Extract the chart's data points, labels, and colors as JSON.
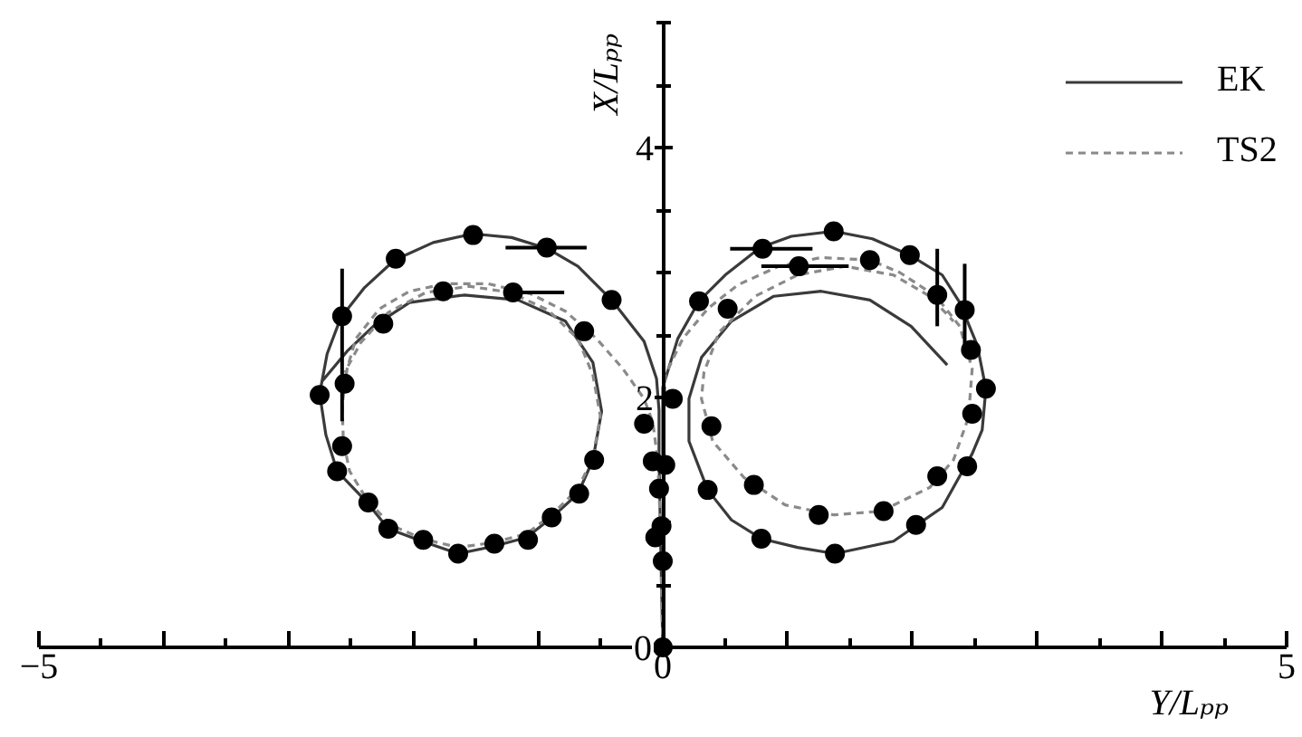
{
  "chart_data": {
    "type": "line",
    "xlabel": "Y/Lₚₚ",
    "ylabel": "X/Lₚₚ",
    "xlim": [
      -5,
      5
    ],
    "ylim": [
      0,
      5
    ],
    "xticks": [
      {
        "value": -5,
        "label": "−5"
      },
      {
        "value": -4.5,
        "label": null
      },
      {
        "value": -4,
        "label": null
      },
      {
        "value": -3.5,
        "label": null
      },
      {
        "value": -3,
        "label": null
      },
      {
        "value": -2.5,
        "label": null
      },
      {
        "value": -2,
        "label": null
      },
      {
        "value": -1.5,
        "label": null
      },
      {
        "value": -1,
        "label": null
      },
      {
        "value": -0.5,
        "label": null
      },
      0,
      {
        "value": 0.5,
        "label": null
      },
      {
        "value": 1,
        "label": null
      },
      {
        "value": 1.5,
        "label": null
      },
      {
        "value": 2,
        "label": null
      },
      {
        "value": 2.5,
        "label": null
      },
      {
        "value": 3,
        "label": null
      },
      {
        "value": 3.5,
        "label": null
      },
      {
        "value": 4,
        "label": null
      },
      {
        "value": 4.5,
        "label": null
      },
      5
    ],
    "yticks": [
      0,
      {
        "value": 0.5,
        "label": null
      },
      {
        "value": 1,
        "label": null
      },
      {
        "value": 1.5,
        "label": null
      },
      2,
      {
        "value": 2.5,
        "label": null
      },
      {
        "value": 3,
        "label": null
      },
      {
        "value": 3.5,
        "label": null
      },
      4,
      {
        "value": 4.5,
        "label": null
      },
      {
        "value": 5,
        "label": null
      }
    ],
    "grid": false,
    "legend": "top right",
    "series": [
      {
        "name": "EK",
        "color": "#3a3a3a",
        "line_style": "solid",
        "marker": "none",
        "x": [
          0,
          -0.01,
          -0.02,
          -0.03,
          -0.03,
          -0.05,
          -0.15,
          -0.41,
          -0.68,
          -0.92,
          -1.21,
          -1.52,
          -1.84,
          -2.15,
          -2.39,
          -2.58,
          -2.69,
          -2.75,
          -2.7,
          -2.61,
          -2.37,
          -2.2,
          -1.93,
          -1.64,
          -1.35,
          -1.09,
          -0.9,
          -0.68,
          -0.56,
          -0.49,
          -0.56,
          -0.78,
          -1.16,
          -1.59,
          -2.03,
          -2.32,
          -2.53,
          -2.73,
          null,
          0,
          0.01,
          0.01,
          0,
          0,
          0,
          0.12,
          0.29,
          0.5,
          0.78,
          1.03,
          1.37,
          1.68,
          1.98,
          2.24,
          2.38,
          2.52,
          2.59,
          2.56,
          2.48,
          2.24,
          1.85,
          1.38,
          1.08,
          0.79,
          0.55,
          0.36,
          0.21,
          0.21,
          0.31,
          0.55,
          0.89,
          1.27,
          1.66,
          1.99,
          2.28
        ],
        "values": [
          0,
          0.5,
          1.0,
          1.5,
          1.9,
          2.15,
          2.45,
          2.78,
          3.05,
          3.19,
          3.28,
          3.31,
          3.24,
          3.1,
          2.88,
          2.64,
          2.35,
          2.03,
          1.7,
          1.41,
          1.16,
          0.95,
          0.85,
          0.75,
          0.81,
          0.88,
          1.03,
          1.23,
          1.5,
          1.89,
          2.28,
          2.61,
          2.78,
          2.82,
          2.76,
          2.57,
          2.37,
          2.13,
          null,
          0,
          0.5,
          1.0,
          1.5,
          1.9,
          2.08,
          2.47,
          2.77,
          2.98,
          3.2,
          3.29,
          3.33,
          3.27,
          3.14,
          2.98,
          2.76,
          2.42,
          2.07,
          1.74,
          1.55,
          1.12,
          0.85,
          0.75,
          0.8,
          0.87,
          1.02,
          1.26,
          1.65,
          1.99,
          2.32,
          2.61,
          2.81,
          2.85,
          2.78,
          2.57,
          2.26
        ]
      },
      {
        "name": "TS2",
        "color": "#8a8a8a",
        "line_style": "dashed",
        "marker": "none",
        "x": [
          0,
          -0.01,
          -0.02,
          -0.04,
          -0.08,
          -0.15,
          -0.32,
          -0.53,
          -0.78,
          -1.06,
          -1.4,
          -1.74,
          -2.03,
          -2.27,
          -2.46,
          -2.53,
          -2.57,
          -2.56,
          -2.51,
          -2.37,
          -2.18,
          -1.93,
          -1.64,
          -1.35,
          -1.09,
          -0.88,
          -0.68,
          -0.56,
          -0.5,
          -0.56,
          -0.68,
          -0.92,
          -1.22,
          -1.55,
          -1.9,
          -2.2,
          -2.42,
          -2.55,
          null,
          0,
          0.01,
          0.01,
          0.01,
          0.01,
          0.02,
          0.16,
          0.36,
          0.6,
          0.93,
          1.27,
          1.66,
          1.9,
          2.19,
          2.38,
          2.48,
          2.45,
          2.33,
          2.14,
          1.75,
          1.37,
          0.98,
          0.65,
          0.4,
          0.31,
          0.33,
          0.45,
          0.74,
          1.08,
          1.46,
          1.85,
          2.14,
          2.33
        ],
        "values": [
          0,
          0.5,
          1.0,
          1.5,
          1.8,
          1.99,
          2.23,
          2.47,
          2.69,
          2.83,
          2.91,
          2.91,
          2.85,
          2.71,
          2.47,
          2.23,
          1.94,
          1.65,
          1.41,
          1.18,
          0.98,
          0.87,
          0.8,
          0.84,
          0.91,
          1.07,
          1.27,
          1.52,
          1.85,
          2.18,
          2.47,
          2.7,
          2.84,
          2.89,
          2.84,
          2.68,
          2.44,
          2.2,
          null,
          0,
          0.5,
          1.0,
          1.5,
          1.9,
          2.18,
          2.47,
          2.71,
          2.9,
          3.05,
          3.12,
          3.1,
          3.0,
          2.81,
          2.57,
          2.23,
          1.84,
          1.5,
          1.28,
          1.09,
          1.06,
          1.14,
          1.36,
          1.65,
          1.99,
          2.2,
          2.52,
          2.81,
          2.98,
          3.05,
          2.98,
          2.81,
          2.61
        ]
      },
      {
        "type": "scatter",
        "color": "#000000",
        "marker": "circle",
        "x": [
          -1.52,
          -2.14,
          -0.93,
          -0.41,
          -2.57,
          -1.76,
          -1.2,
          -0.63,
          -2.24,
          -2.75,
          -2.55,
          -2.57,
          -2.61,
          -2.36,
          -2.2,
          -1.92,
          -1.64,
          -1.35,
          -1.08,
          -0.89,
          -0.67,
          -0.55,
          -0.15,
          0.08,
          -0.08,
          0.02,
          -0.03,
          -0.06,
          -0.01,
          0,
          0,
          1.37,
          1.98,
          0.8,
          1.09,
          1.66,
          2.2,
          2.42,
          0.29,
          0.52,
          2.47,
          2.59,
          2.48,
          2.44,
          2.2,
          2.03,
          1.77,
          1.38,
          1.25,
          0.79,
          0.73,
          0.36,
          0.39
        ],
        "values": [
          3.3,
          3.11,
          3.2,
          2.78,
          2.65,
          2.85,
          2.84,
          2.53,
          2.59,
          2.02,
          2.11,
          1.61,
          1.41,
          1.16,
          0.95,
          0.86,
          0.75,
          0.83,
          0.86,
          1.04,
          1.23,
          1.5,
          1.79,
          1.99,
          1.49,
          1.46,
          1.27,
          0.88,
          0.97,
          0.69,
          0,
          3.33,
          3.14,
          3.19,
          3.05,
          3.1,
          2.82,
          2.7,
          2.77,
          2.71,
          2.38,
          2.07,
          1.87,
          1.45,
          1.37,
          0.98,
          1.09,
          0.75,
          1.06,
          0.87,
          1.3,
          1.26,
          1.77
        ],
        "errors": [
          null,
          null,
          null,
          null,
          [
            1.81,
            3.03
          ],
          null,
          null,
          null,
          null,
          null,
          null,
          null,
          null,
          null,
          null,
          null,
          null,
          null,
          null,
          null,
          null,
          null,
          null,
          null,
          null,
          null,
          null,
          null,
          null,
          null,
          null,
          null,
          null,
          null,
          null,
          null,
          [
            2.57,
            3.19
          ],
          [
            2.42,
            3.07
          ],
          null,
          null,
          null,
          null,
          null,
          null,
          null,
          null,
          null,
          null,
          null,
          null,
          null,
          null,
          null
        ],
        "xerrors": [
          null,
          null,
          [
            -1.26,
            -0.61
          ],
          null,
          null,
          null,
          [
            -1.26,
            -0.79
          ],
          null,
          null,
          null,
          null,
          null,
          null,
          null,
          null,
          null,
          null,
          null,
          null,
          null,
          null,
          null,
          null,
          null,
          null,
          null,
          null,
          null,
          null,
          null,
          null,
          null,
          null,
          [
            0.54,
            1.2
          ],
          [
            0.79,
            1.49
          ],
          null,
          null,
          null,
          null,
          null,
          null,
          null,
          null,
          null,
          null,
          null,
          null,
          null,
          null,
          null,
          null,
          null,
          null
        ]
      }
    ]
  }
}
